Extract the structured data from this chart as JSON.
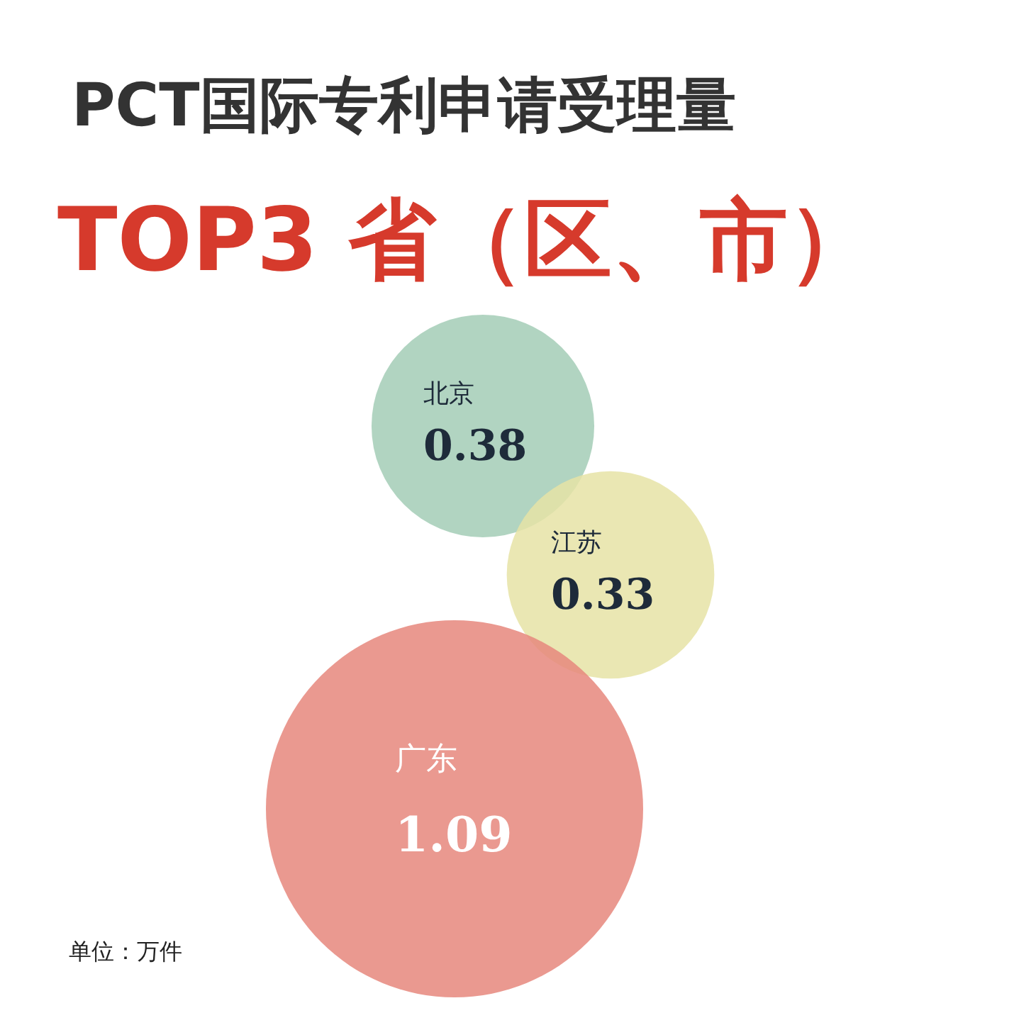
{
  "chart_data": {
    "type": "other",
    "title": "PCT国际专利申请受理量",
    "subtitle": "TOP3 省（区、市）",
    "categories": [
      "北京",
      "江苏",
      "广东"
    ],
    "values": [
      0.38,
      0.33,
      1.09
    ],
    "colors": [
      "#a3cdb6",
      "#e6e3a6",
      "#e6877c"
    ],
    "data_labels": true,
    "annotations": [
      "单位：万件"
    ]
  }
}
